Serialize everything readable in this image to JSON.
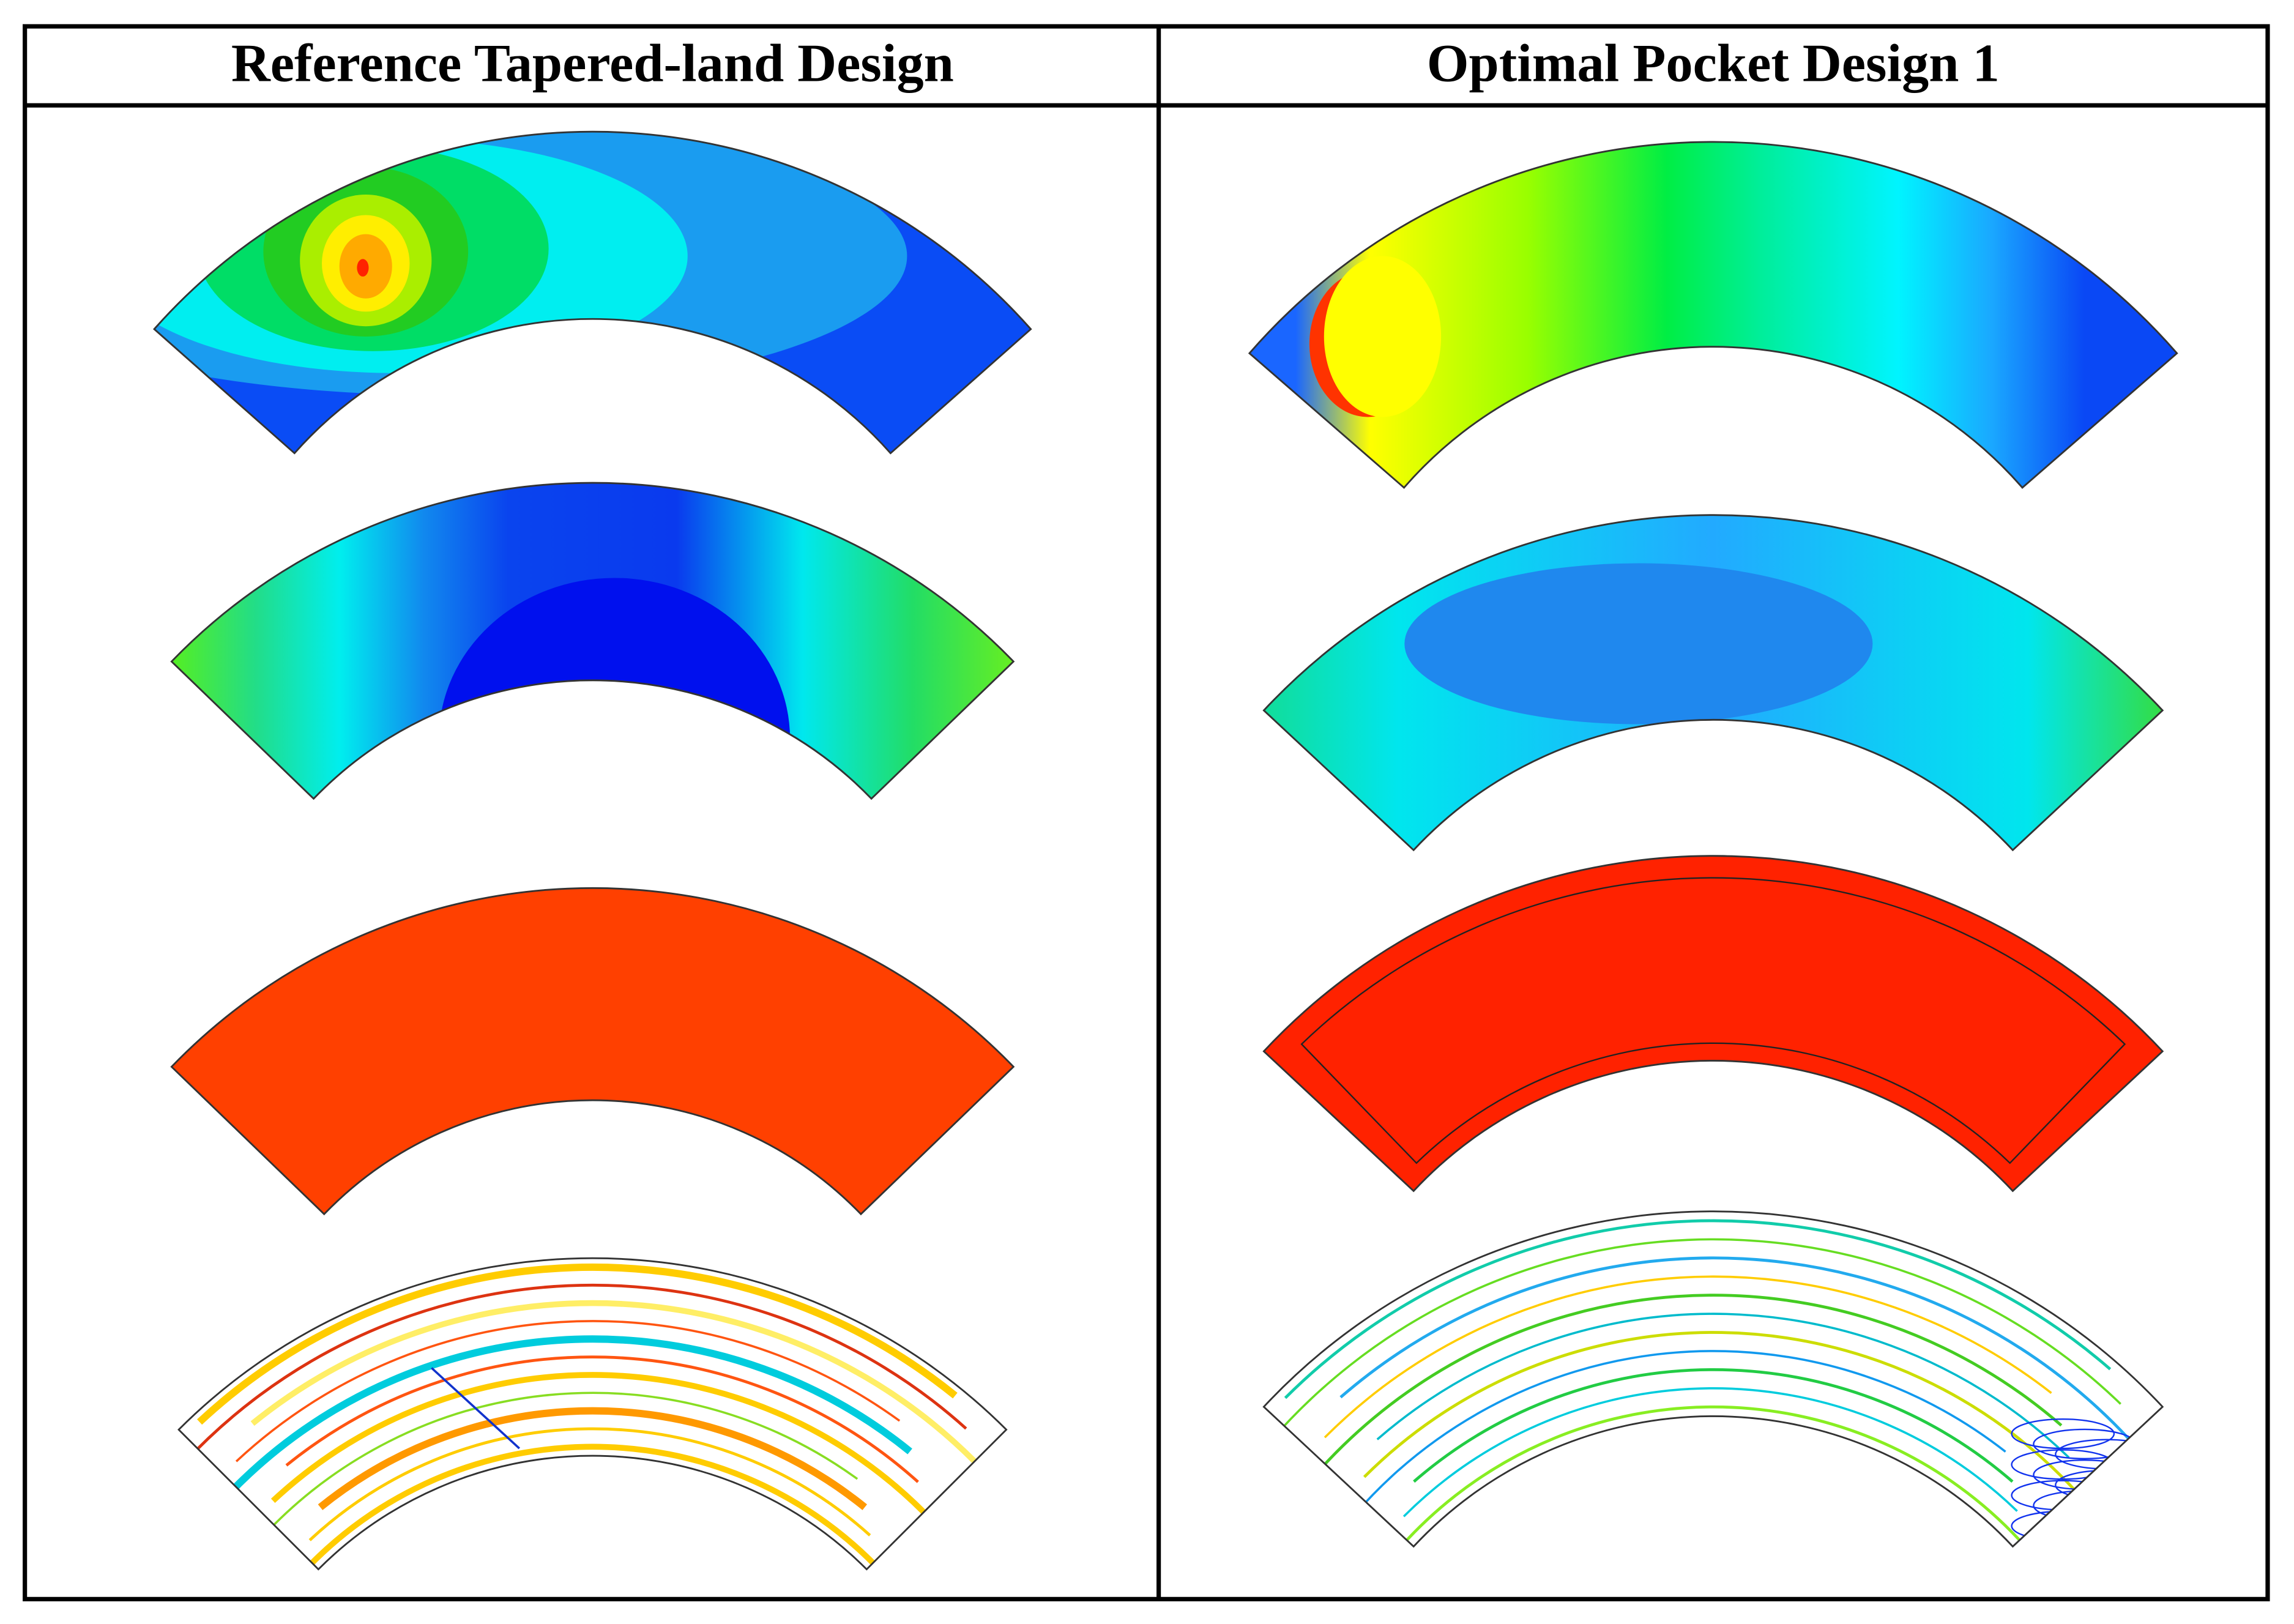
{
  "header": {
    "columns": [
      "Reference Tapered-land Design",
      "Optimal Pocket Design 1"
    ]
  }
}
